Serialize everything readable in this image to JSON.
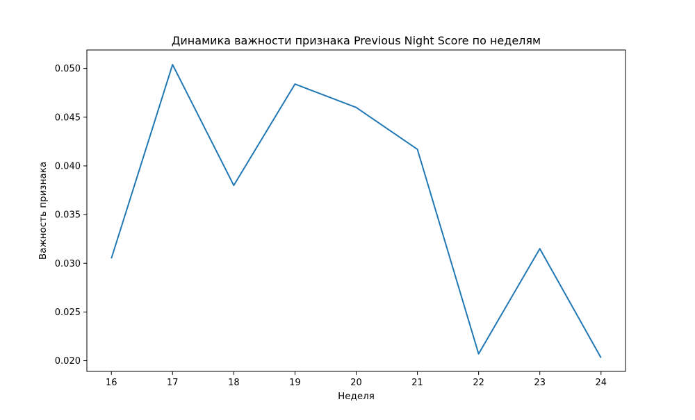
{
  "chart_data": {
    "type": "line",
    "title": "Динамика важности признака Previous Night Score по неделям",
    "xlabel": "Неделя",
    "ylabel": "Важность признака",
    "x": [
      16,
      17,
      18,
      19,
      20,
      21,
      22,
      23,
      24
    ],
    "series": [
      {
        "values": [
          0.0305,
          0.0504,
          0.038,
          0.0484,
          0.046,
          0.0417,
          0.0207,
          0.0315,
          0.0203
        ]
      }
    ],
    "xlim": [
      15.6,
      24.4
    ],
    "ylim": [
      0.0189,
      0.0519
    ],
    "xticks": [
      "16",
      "17",
      "18",
      "19",
      "20",
      "21",
      "22",
      "23",
      "24"
    ],
    "yticks": [
      "0.020",
      "0.025",
      "0.030",
      "0.035",
      "0.040",
      "0.045",
      "0.050"
    ],
    "grid": false,
    "colors": {
      "line": "#1f77b4"
    }
  }
}
